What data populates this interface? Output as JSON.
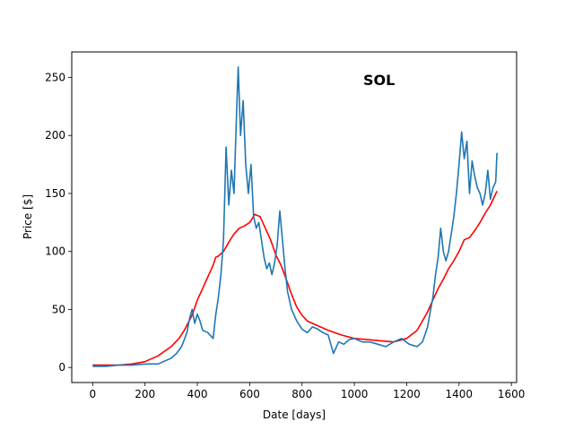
{
  "chart_data": {
    "type": "line",
    "annotation": "SOL",
    "xlabel": "Date [days]",
    "ylabel": "Price [$]",
    "xlim": [
      -80,
      1620
    ],
    "ylim": [
      -13,
      272
    ],
    "x_ticks": [
      0,
      200,
      400,
      600,
      800,
      1000,
      1200,
      1400,
      1600
    ],
    "y_ticks": [
      0,
      50,
      100,
      150,
      200,
      250
    ],
    "x_tick_labels": [
      "0",
      "200",
      "400",
      "600",
      "800",
      "1000",
      "1200",
      "1400",
      "1600"
    ],
    "y_tick_labels": [
      "0",
      "50",
      "100",
      "150",
      "200",
      "250"
    ],
    "grid": false,
    "series": [
      {
        "color": "#ff0000",
        "x": [
          0,
          50,
          100,
          150,
          200,
          250,
          300,
          330,
          350,
          380,
          400,
          420,
          440,
          460,
          470,
          480,
          500,
          520,
          540,
          560,
          580,
          600,
          620,
          640,
          660,
          680,
          700,
          720,
          740,
          760,
          780,
          800,
          820,
          840,
          860,
          880,
          900,
          950,
          1000,
          1050,
          1100,
          1150,
          1200,
          1240,
          1260,
          1280,
          1300,
          1320,
          1340,
          1360,
          1380,
          1400,
          1420,
          1440,
          1460,
          1480,
          1500,
          1520,
          1545
        ],
        "y": [
          2,
          2,
          2,
          3,
          5,
          10,
          18,
          25,
          32,
          45,
          58,
          68,
          78,
          88,
          95,
          96,
          100,
          108,
          115,
          120,
          122,
          125,
          132,
          130,
          120,
          110,
          97,
          88,
          76,
          63,
          52,
          45,
          40,
          38,
          36,
          34,
          32,
          28,
          25,
          24,
          23,
          22,
          25,
          32,
          40,
          48,
          58,
          68,
          76,
          85,
          92,
          100,
          110,
          112,
          118,
          125,
          133,
          140,
          152
        ]
      },
      {
        "color": "#1f77b4",
        "x": [
          0,
          50,
          100,
          150,
          200,
          250,
          300,
          320,
          340,
          360,
          370,
          380,
          390,
          400,
          410,
          420,
          440,
          460,
          470,
          480,
          490,
          500,
          510,
          520,
          530,
          540,
          550,
          556,
          565,
          575,
          585,
          595,
          605,
          615,
          625,
          635,
          645,
          655,
          665,
          675,
          685,
          695,
          705,
          715,
          725,
          735,
          745,
          760,
          780,
          800,
          820,
          840,
          860,
          880,
          900,
          920,
          940,
          960,
          980,
          1000,
          1030,
          1060,
          1090,
          1120,
          1150,
          1180,
          1210,
          1240,
          1260,
          1280,
          1290,
          1300,
          1310,
          1320,
          1330,
          1340,
          1350,
          1360,
          1370,
          1380,
          1390,
          1400,
          1410,
          1420,
          1430,
          1440,
          1450,
          1460,
          1470,
          1480,
          1490,
          1500,
          1510,
          1520,
          1530,
          1540,
          1545
        ],
        "y": [
          1,
          1,
          2,
          2,
          3,
          3,
          8,
          12,
          18,
          30,
          42,
          50,
          38,
          46,
          40,
          32,
          30,
          25,
          45,
          60,
          80,
          110,
          190,
          140,
          170,
          150,
          220,
          259,
          200,
          230,
          175,
          150,
          175,
          130,
          120,
          125,
          110,
          95,
          85,
          90,
          80,
          90,
          105,
          135,
          110,
          85,
          65,
          50,
          40,
          33,
          30,
          35,
          33,
          30,
          28,
          12,
          22,
          20,
          24,
          25,
          22,
          22,
          20,
          18,
          22,
          25,
          20,
          18,
          22,
          35,
          48,
          60,
          80,
          95,
          120,
          100,
          92,
          100,
          115,
          130,
          150,
          175,
          203,
          180,
          195,
          150,
          178,
          165,
          155,
          150,
          140,
          150,
          170,
          145,
          155,
          160,
          185
        ]
      }
    ]
  }
}
